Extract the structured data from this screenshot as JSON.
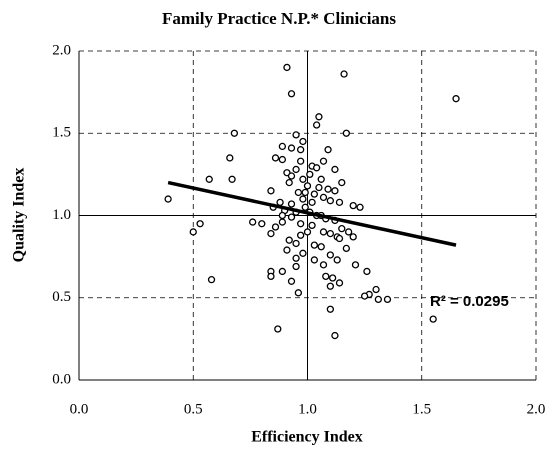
{
  "chart_data": {
    "type": "scatter",
    "title": "Family Practice N.P.* Clinicians",
    "x_label": "Efficiency Index",
    "y_label": "Quality Index",
    "annotation": "R² = 0.0295",
    "xlim": [
      0.0,
      2.0
    ],
    "ylim": [
      0.0,
      2.0
    ],
    "xticks": [
      {
        "value": 0,
        "label": "0.0"
      },
      0.5,
      {
        "value": 1,
        "label": "1.0"
      },
      1.5,
      {
        "value": 2,
        "label": "2.0"
      }
    ],
    "yticks": [
      {
        "value": 0,
        "label": "0.0"
      },
      0.5,
      {
        "value": 1,
        "label": "1.0"
      },
      1.5,
      {
        "value": 2,
        "label": "2.0"
      }
    ],
    "grid": true,
    "reference_lines": {
      "x": 1.0,
      "y": 1.0
    },
    "trendline": {
      "x": [
        0.39,
        1.65
      ],
      "y": [
        1.2,
        0.82
      ]
    },
    "series": [
      {
        "color": "#000000",
        "x": [
          0.91,
          1.16,
          1.65,
          0.93,
          1.05,
          1.04,
          0.68,
          0.95,
          1.17,
          0.98,
          0.89,
          0.93,
          1.09,
          0.97,
          0.66,
          0.86,
          0.89,
          0.97,
          1.07,
          1.02,
          1.12,
          0.95,
          0.91,
          0.93,
          1.01,
          0.67,
          0.57,
          0.98,
          1.06,
          1.15,
          0.92,
          1.0,
          1.05,
          1.09,
          1.12,
          0.84,
          0.96,
          1.03,
          1.07,
          0.98,
          1.02,
          1.1,
          1.14,
          0.39,
          0.88,
          0.93,
          0.99,
          1.2,
          1.23,
          0.85,
          0.9,
          0.95,
          1.01,
          1.04,
          1.06,
          0.89,
          0.93,
          1.08,
          1.12,
          0.76,
          0.8,
          0.53,
          0.97,
          1.02,
          0.86,
          1.15,
          1.18,
          0.5,
          1.07,
          1.1,
          0.84,
          0.97,
          1.13,
          1.2,
          0.92,
          0.95,
          1.03,
          1.06,
          1.17,
          0.91,
          0.98,
          1.1,
          0.95,
          1.03,
          1.13,
          1.07,
          1.21,
          0.95,
          0.89,
          1.26,
          0.84,
          0.84,
          1.08,
          1.11,
          0.93,
          0.58,
          1.14,
          1.1,
          1.3,
          1.27,
          1.25,
          0.96,
          1.35,
          1.31,
          1.1,
          1.55,
          0.87,
          1.12,
          0.99,
          1.0,
          1.14,
          0.89,
          1.04
        ],
        "values": [
          1.9,
          1.86,
          1.71,
          1.74,
          1.6,
          1.55,
          1.5,
          1.49,
          1.5,
          1.45,
          1.42,
          1.41,
          1.4,
          1.4,
          1.35,
          1.35,
          1.34,
          1.33,
          1.33,
          1.3,
          1.28,
          1.28,
          1.26,
          1.24,
          1.25,
          1.22,
          1.22,
          1.22,
          1.22,
          1.2,
          1.2,
          1.18,
          1.17,
          1.16,
          1.15,
          1.15,
          1.14,
          1.13,
          1.11,
          1.1,
          1.08,
          1.09,
          1.08,
          1.1,
          1.08,
          1.07,
          1.05,
          1.06,
          1.05,
          1.05,
          1.03,
          1.02,
          1.02,
          1.0,
          1.0,
          1.0,
          0.99,
          0.98,
          0.97,
          0.96,
          0.95,
          0.95,
          0.95,
          0.94,
          0.93,
          0.92,
          0.9,
          0.9,
          0.9,
          0.89,
          0.89,
          0.88,
          0.87,
          0.87,
          0.85,
          0.83,
          0.82,
          0.81,
          0.8,
          0.79,
          0.77,
          0.76,
          0.74,
          0.73,
          0.73,
          0.7,
          0.7,
          0.69,
          0.66,
          0.66,
          0.66,
          0.63,
          0.63,
          0.62,
          0.6,
          0.61,
          0.59,
          0.57,
          0.55,
          0.52,
          0.51,
          0.53,
          0.49,
          0.49,
          0.43,
          0.37,
          0.31,
          0.27,
          1.14,
          0.9,
          0.86,
          0.96,
          1.29
        ]
      }
    ]
  }
}
